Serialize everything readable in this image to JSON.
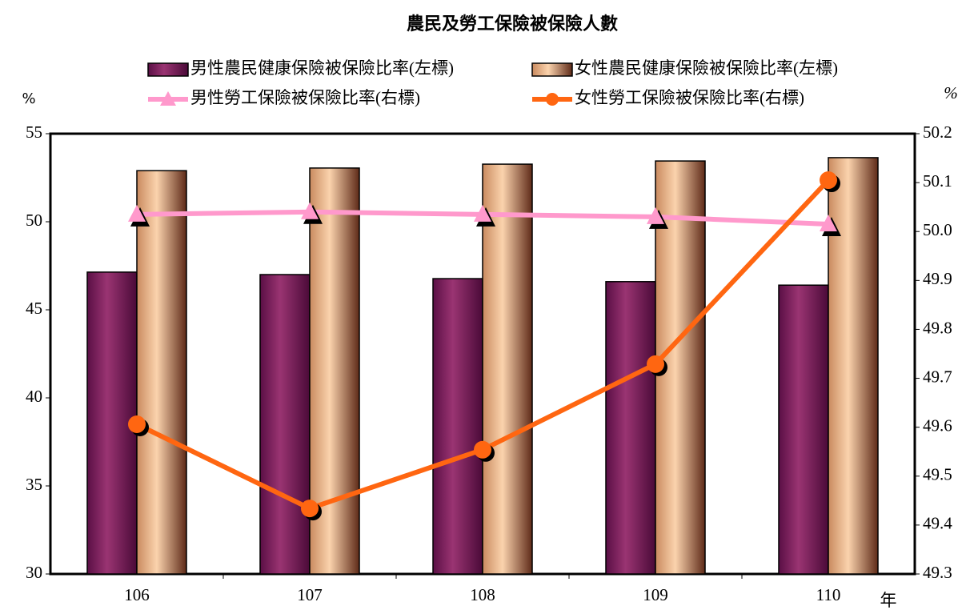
{
  "chart_data": {
    "type": "bar_line",
    "title": "農民及勞工保險被保險人數",
    "y_label": "%",
    "y2_label": "%",
    "x_label": "年",
    "categories": [
      "106",
      "107",
      "108",
      "109",
      "110"
    ],
    "series": [
      {
        "name": "男性農民健康保險被保險比率(左標)",
        "type": "bar",
        "color": "#8a2a68",
        "values": [
          47.14,
          47.0,
          46.77,
          46.6,
          46.4
        ]
      },
      {
        "name": "女性農民健康保險被保險比率(左標)",
        "type": "bar",
        "color": "#f6c393",
        "values": [
          52.9,
          53.05,
          53.27,
          53.45,
          53.64
        ]
      },
      {
        "name": "男性勞工保險被保險比率(右標)",
        "type": "line",
        "marker": "triangle",
        "axis": "y2",
        "color": "#ff99cc",
        "values": [
          50.035,
          50.04,
          50.035,
          50.03,
          50.015
        ]
      },
      {
        "name": "女性勞工保險被保險比率(右標)",
        "type": "line",
        "marker": "circle",
        "axis": "y2",
        "color": "#ff6611",
        "values": [
          49.606,
          49.434,
          49.554,
          49.729,
          50.105
        ]
      }
    ],
    "ylim": [
      30,
      55
    ],
    "yticks": [
      30,
      35,
      40,
      45,
      50,
      55
    ],
    "y2lim": [
      49.3,
      50.2
    ],
    "y2ticks": [
      49.3,
      49.4,
      49.5,
      49.6,
      49.7,
      49.8,
      49.9,
      {
        "value": 50,
        "label": "50.0"
      },
      50.1,
      50.2
    ]
  }
}
